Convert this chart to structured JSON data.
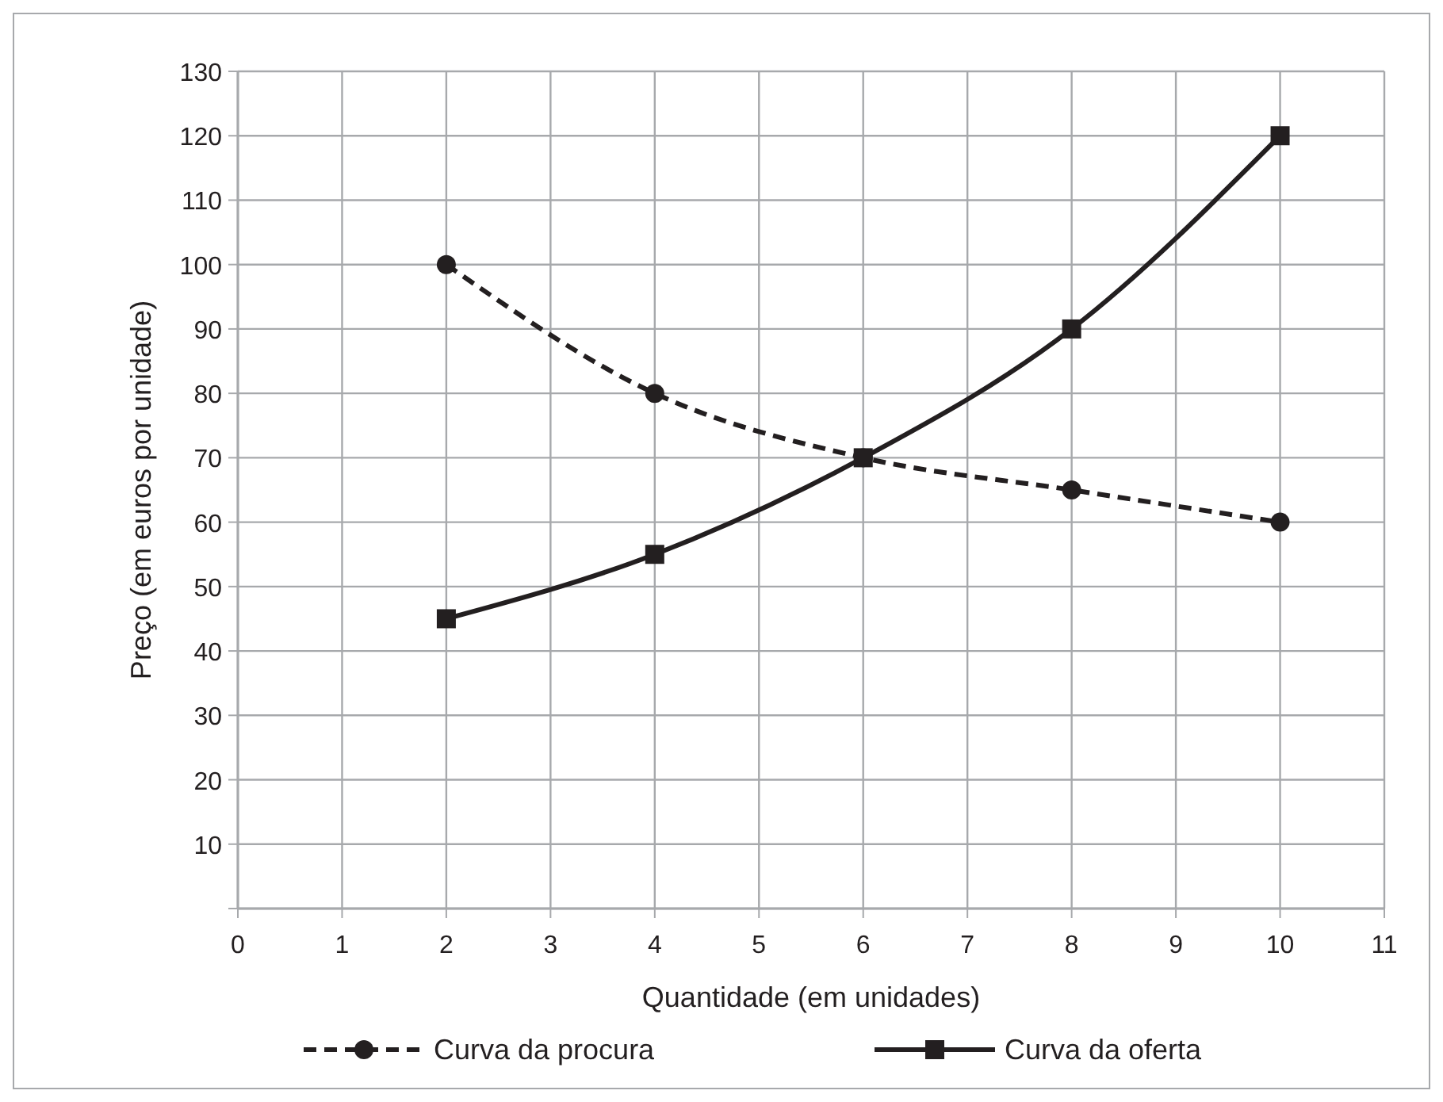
{
  "chart_data": {
    "type": "line",
    "xlabel": "Quantidade (em unidades)",
    "ylabel": "Preço (em euros por unidade)",
    "x": [
      2,
      4,
      6,
      8,
      10
    ],
    "series": [
      {
        "name": "Curva da procura",
        "color": "#231f20",
        "values": [
          100,
          80,
          70,
          65,
          60
        ],
        "line_style": "dashed",
        "marker": "circle"
      },
      {
        "name": "Curva da oferta",
        "color": "#231f20",
        "values": [
          45,
          55,
          70,
          90,
          120
        ],
        "line_style": "solid",
        "marker": "square"
      }
    ],
    "xlim": [
      0,
      11
    ],
    "xticks": [
      0,
      1,
      2,
      3,
      4,
      5,
      6,
      7,
      8,
      9,
      10,
      11
    ],
    "ylim": [
      0,
      130
    ],
    "yticks": [
      {
        "value": 0,
        "label": null
      },
      10,
      20,
      30,
      40,
      50,
      60,
      70,
      80,
      90,
      100,
      110,
      120,
      130
    ],
    "grid": true,
    "legend": "bottom"
  }
}
